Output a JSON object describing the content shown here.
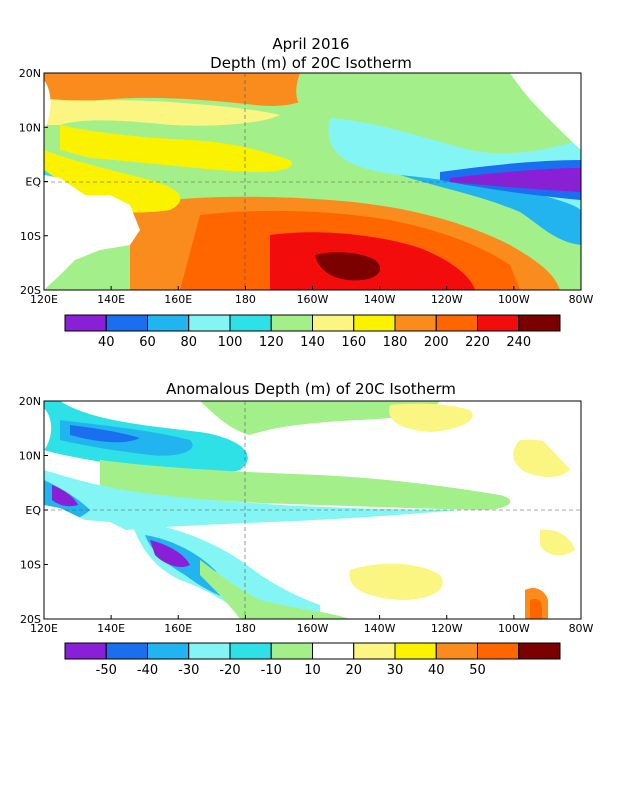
{
  "page": {
    "month_title": "April 2016"
  },
  "chart_data": [
    {
      "type": "heatmap",
      "title": "Depth (m) of 20C Isotherm",
      "x_ticks": [
        "120E",
        "140E",
        "160E",
        "180",
        "160W",
        "140W",
        "120W",
        "100W",
        "80W"
      ],
      "y_ticks": [
        "20N",
        "10N",
        "EQ",
        "10S",
        "20S"
      ],
      "xlim": [
        120,
        280
      ],
      "ylim": [
        -20,
        20
      ],
      "colorbar": {
        "labels": [
          "40",
          "60",
          "80",
          "100",
          "120",
          "140",
          "160",
          "180",
          "200",
          "220",
          "240"
        ],
        "colors": [
          "#8a1fd8",
          "#1a6fee",
          "#21b4ef",
          "#84f5f5",
          "#2ee1e6",
          "#a3f08a",
          "#fbf582",
          "#fbf200",
          "#f98c1c",
          "#ff6600",
          "#f20c0c",
          "#7b0000"
        ]
      },
      "grid": true
    },
    {
      "type": "heatmap",
      "title": "Anomalous Depth (m) of 20C Isotherm",
      "x_ticks": [
        "120E",
        "140E",
        "160E",
        "180",
        "160W",
        "140W",
        "120W",
        "100W",
        "80W"
      ],
      "y_ticks": [
        "20N",
        "10N",
        "EQ",
        "10S",
        "20S"
      ],
      "xlim": [
        120,
        280
      ],
      "ylim": [
        -20,
        20
      ],
      "colorbar": {
        "labels": [
          "-50",
          "-40",
          "-30",
          "-20",
          "-10",
          "10",
          "20",
          "30",
          "40",
          "50"
        ],
        "colors": [
          "#8a1fd8",
          "#1a6fee",
          "#21b4ef",
          "#84f5f5",
          "#2ee1e6",
          "#a3f08a",
          "#ffffff",
          "#fbf582",
          "#fbf200",
          "#f98c1c",
          "#ff6600",
          "#7b0000"
        ]
      },
      "grid": true
    }
  ]
}
